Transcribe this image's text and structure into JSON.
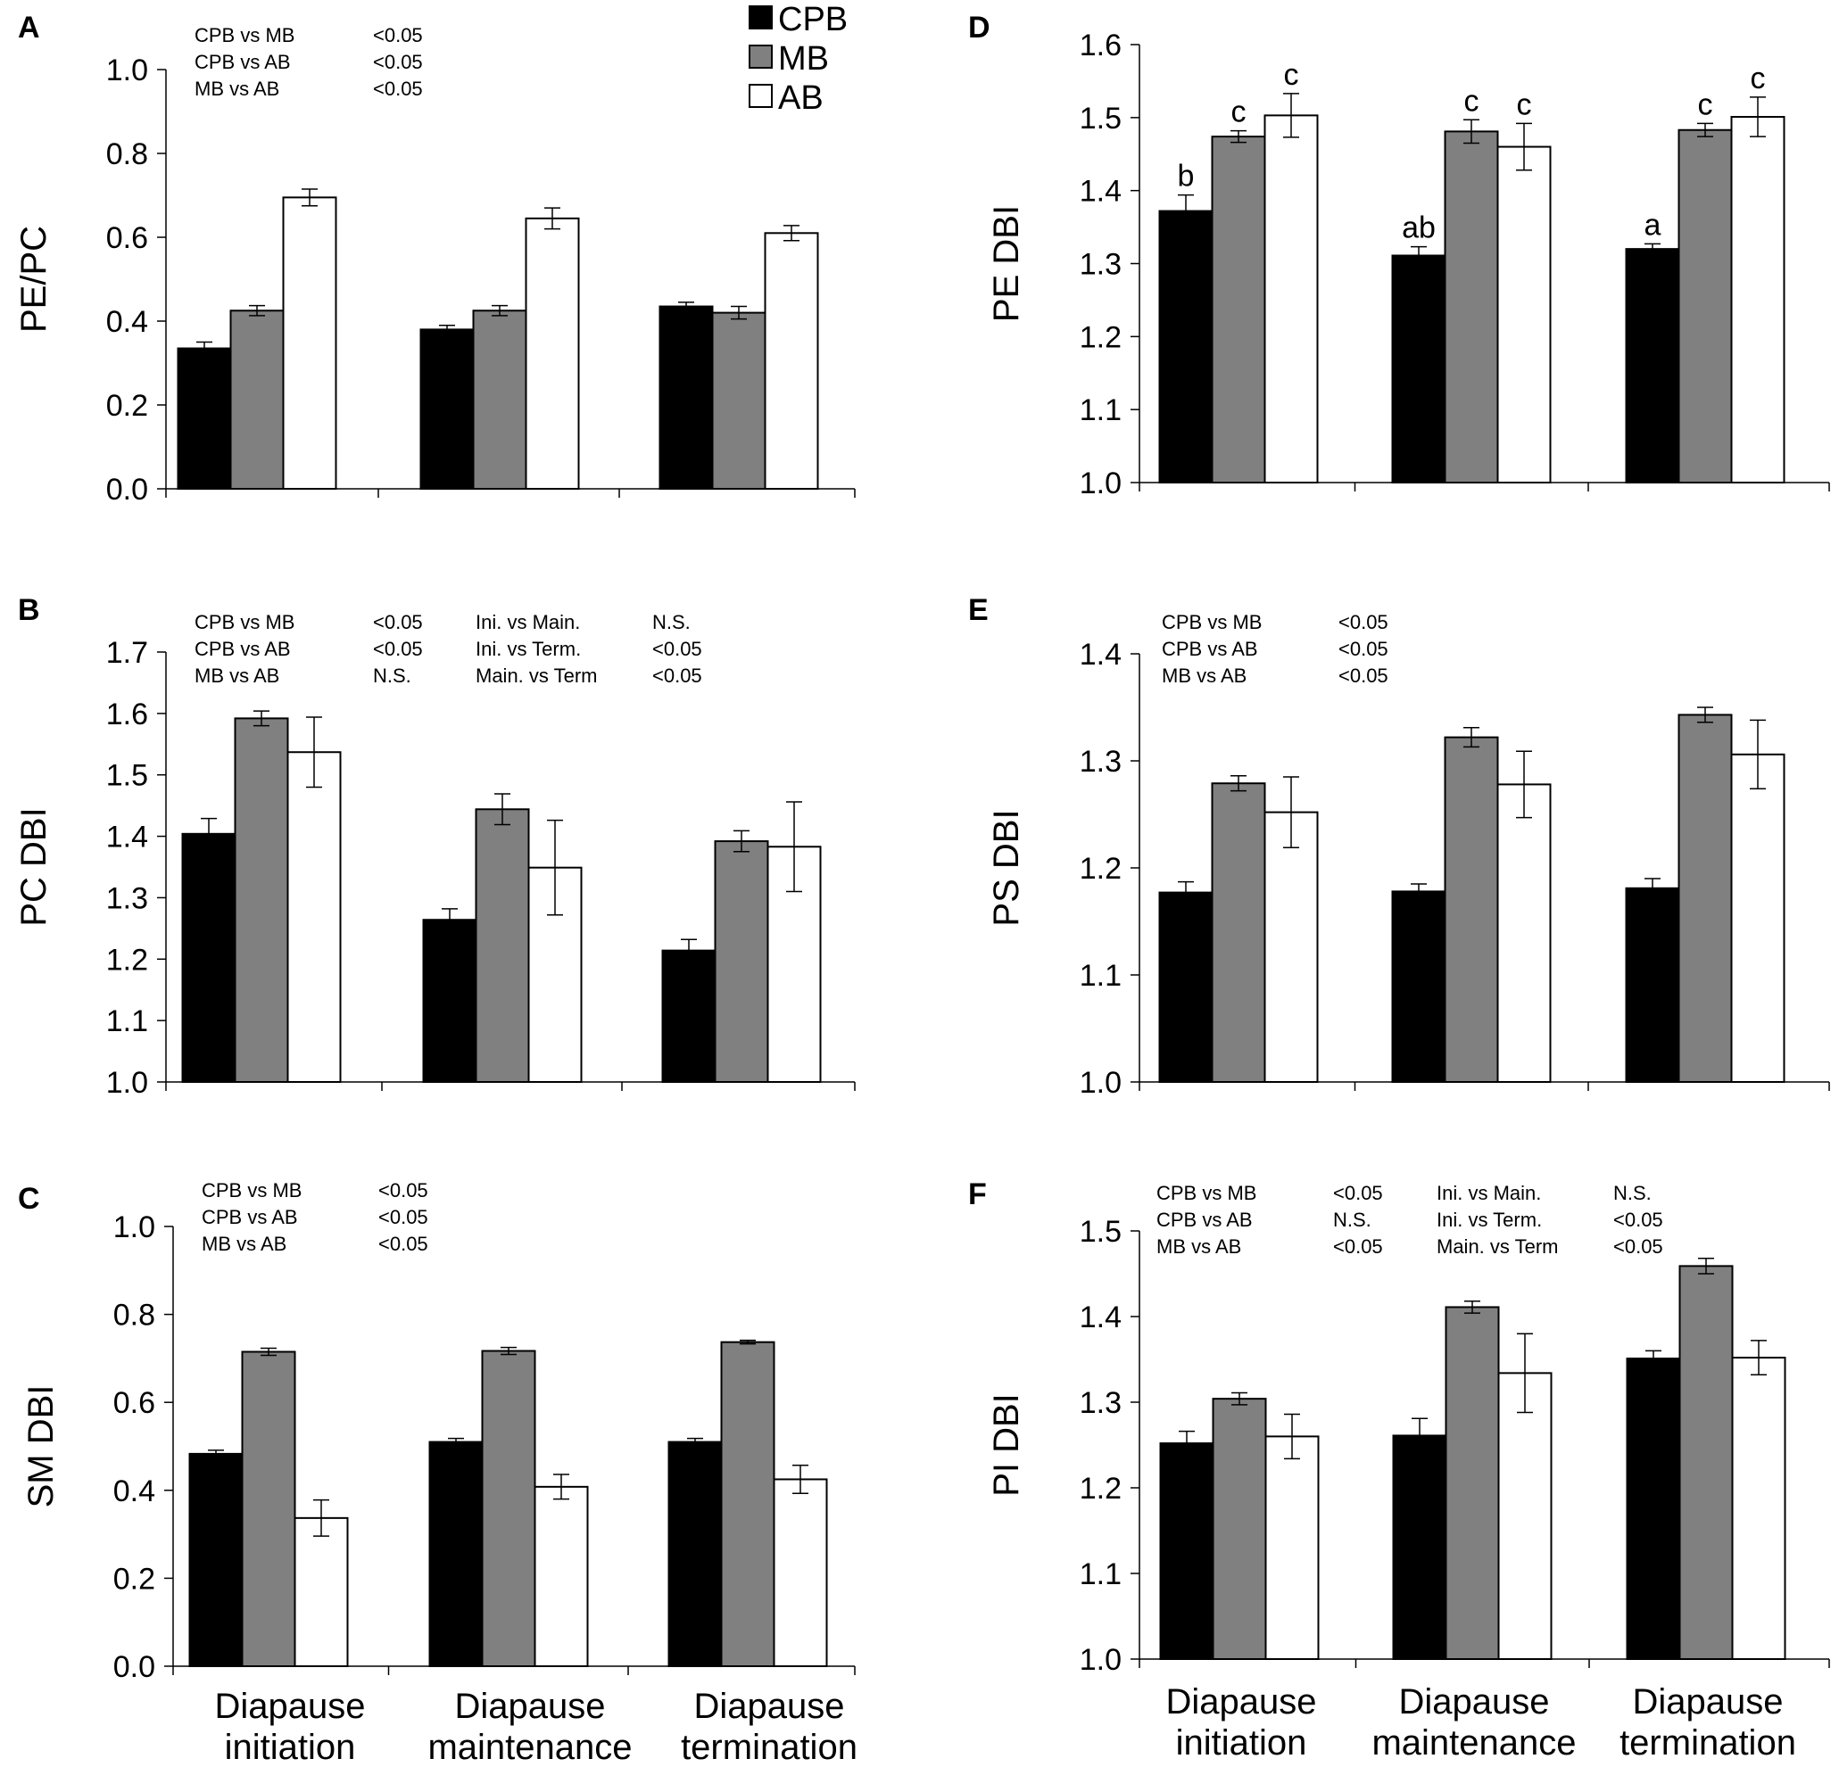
{
  "colors": {
    "CPB": "#000000",
    "MB": "#808080",
    "AB": "#ffffff"
  },
  "legend": [
    {
      "key": "CPB",
      "label": "CPB"
    },
    {
      "key": "MB",
      "label": "MB"
    },
    {
      "key": "AB",
      "label": "AB"
    }
  ],
  "x_categories": [
    [
      "Diapause",
      "initiation"
    ],
    [
      "Diapause",
      "maintenance"
    ],
    [
      "Diapause",
      "termination"
    ]
  ],
  "chart_data": [
    {
      "id": "A",
      "panel": "A",
      "type": "bar",
      "ylabel": "PE/PC",
      "ylim": [
        0.0,
        1.0
      ],
      "yticks": [
        "0.0",
        "0.2",
        "0.4",
        "0.6",
        "0.8",
        "1.0"
      ],
      "categories": [
        "Diapause initiation",
        "Diapause maintenance",
        "Diapause termination"
      ],
      "series": [
        {
          "name": "CPB",
          "values": [
            0.335,
            0.38,
            0.435
          ],
          "errors": [
            0.015,
            0.01,
            0.01
          ]
        },
        {
          "name": "MB",
          "values": [
            0.425,
            0.425,
            0.42
          ],
          "errors": [
            0.012,
            0.012,
            0.015
          ]
        },
        {
          "name": "AB",
          "values": [
            0.695,
            0.645,
            0.61
          ],
          "errors": [
            0.02,
            0.025,
            0.018
          ]
        }
      ],
      "stats": [
        [
          [
            "CPB vs MB",
            "<0.05"
          ],
          [
            "CPB vs AB",
            "<0.05"
          ],
          [
            "MB vs AB",
            "<0.05"
          ]
        ]
      ],
      "letters": []
    },
    {
      "id": "B",
      "panel": "B",
      "type": "bar",
      "ylabel": "PC DBI",
      "ylim": [
        1.0,
        1.7
      ],
      "yticks": [
        "1.0",
        "1.1",
        "1.2",
        "1.3",
        "1.4",
        "1.5",
        "1.6",
        "1.7"
      ],
      "categories": [
        "Diapause initiation",
        "Diapause maintenance",
        "Diapause termination"
      ],
      "series": [
        {
          "name": "CPB",
          "values": [
            1.404,
            1.264,
            1.214
          ],
          "errors": [
            0.025,
            0.018,
            0.018
          ]
        },
        {
          "name": "MB",
          "values": [
            1.592,
            1.444,
            1.392
          ],
          "errors": [
            0.012,
            0.025,
            0.017
          ]
        },
        {
          "name": "AB",
          "values": [
            1.537,
            1.349,
            1.383
          ],
          "errors": [
            0.057,
            0.077,
            0.073
          ]
        }
      ],
      "stats": [
        [
          [
            "CPB vs MB",
            "<0.05"
          ],
          [
            "CPB vs AB",
            "<0.05"
          ],
          [
            "MB vs AB",
            "N.S."
          ]
        ],
        [
          [
            "Ini. vs Main.",
            "N.S."
          ],
          [
            "Ini. vs Term.",
            "<0.05"
          ],
          [
            "Main. vs Term",
            "<0.05"
          ]
        ]
      ],
      "letters": []
    },
    {
      "id": "C",
      "panel": "C",
      "type": "bar",
      "ylabel": "SM DBI",
      "ylim": [
        0.0,
        1.0
      ],
      "yticks": [
        "0.0",
        "0.2",
        "0.4",
        "0.6",
        "0.8",
        "1.0"
      ],
      "categories": [
        "Diapause initiation",
        "Diapause maintenance",
        "Diapause termination"
      ],
      "series": [
        {
          "name": "CPB",
          "values": [
            0.483,
            0.51,
            0.51
          ],
          "errors": [
            0.008,
            0.008,
            0.008
          ]
        },
        {
          "name": "MB",
          "values": [
            0.715,
            0.717,
            0.737
          ],
          "errors": [
            0.008,
            0.008,
            0.004
          ]
        },
        {
          "name": "AB",
          "values": [
            0.337,
            0.408,
            0.425
          ],
          "errors": [
            0.041,
            0.028,
            0.032
          ]
        }
      ],
      "stats": [
        [
          [
            "CPB vs MB",
            "<0.05"
          ],
          [
            "CPB vs AB",
            "<0.05"
          ],
          [
            "MB vs AB",
            "<0.05"
          ]
        ]
      ],
      "letters": []
    },
    {
      "id": "D",
      "panel": "D",
      "type": "bar",
      "ylabel": "PE DBI",
      "ylim": [
        1.0,
        1.6
      ],
      "yticks": [
        "1.0",
        "1.1",
        "1.2",
        "1.3",
        "1.4",
        "1.5",
        "1.6"
      ],
      "categories": [
        "Diapause initiation",
        "Diapause maintenance",
        "Diapause termination"
      ],
      "series": [
        {
          "name": "CPB",
          "values": [
            1.372,
            1.311,
            1.32
          ],
          "errors": [
            0.022,
            0.012,
            0.007
          ]
        },
        {
          "name": "MB",
          "values": [
            1.474,
            1.481,
            1.483
          ],
          "errors": [
            0.008,
            0.016,
            0.009
          ]
        },
        {
          "name": "AB",
          "values": [
            1.503,
            1.46,
            1.501
          ],
          "errors": [
            0.03,
            0.032,
            0.027
          ]
        }
      ],
      "stats": [],
      "letters": [
        [
          "b",
          "c",
          "c"
        ],
        [
          "ab",
          "c",
          "c"
        ],
        [
          "a",
          "c",
          "c"
        ]
      ]
    },
    {
      "id": "E",
      "panel": "E",
      "type": "bar",
      "ylabel": "PS DBI",
      "ylim": [
        1.0,
        1.4
      ],
      "yticks": [
        "1.0",
        "1.1",
        "1.2",
        "1.3",
        "1.4"
      ],
      "categories": [
        "Diapause initiation",
        "Diapause maintenance",
        "Diapause termination"
      ],
      "series": [
        {
          "name": "CPB",
          "values": [
            1.177,
            1.178,
            1.181
          ],
          "errors": [
            0.01,
            0.007,
            0.009
          ]
        },
        {
          "name": "MB",
          "values": [
            1.279,
            1.322,
            1.343
          ],
          "errors": [
            0.007,
            0.009,
            0.007
          ]
        },
        {
          "name": "AB",
          "values": [
            1.252,
            1.278,
            1.306
          ],
          "errors": [
            0.033,
            0.031,
            0.032
          ]
        }
      ],
      "stats": [
        [
          [
            "CPB vs MB",
            "<0.05"
          ],
          [
            "CPB vs AB",
            "<0.05"
          ],
          [
            "MB vs AB",
            "<0.05"
          ]
        ]
      ],
      "letters": []
    },
    {
      "id": "F",
      "panel": "F",
      "type": "bar",
      "ylabel": "PI DBI",
      "ylim": [
        1.0,
        1.5
      ],
      "yticks": [
        "1.0",
        "1.1",
        "1.2",
        "1.3",
        "1.4",
        "1.5"
      ],
      "categories": [
        "Diapause initiation",
        "Diapause maintenance",
        "Diapause termination"
      ],
      "series": [
        {
          "name": "CPB",
          "values": [
            1.252,
            1.261,
            1.351
          ],
          "errors": [
            0.014,
            0.02,
            0.009
          ]
        },
        {
          "name": "MB",
          "values": [
            1.304,
            1.411,
            1.459
          ],
          "errors": [
            0.007,
            0.007,
            0.009
          ]
        },
        {
          "name": "AB",
          "values": [
            1.26,
            1.334,
            1.352
          ],
          "errors": [
            0.026,
            0.046,
            0.02
          ]
        }
      ],
      "stats": [
        [
          [
            "CPB vs MB",
            "<0.05"
          ],
          [
            "CPB vs AB",
            "N.S."
          ],
          [
            "MB vs AB",
            "<0.05"
          ]
        ],
        [
          [
            "Ini. vs Main.",
            "N.S."
          ],
          [
            "Ini. vs Term.",
            "<0.05"
          ],
          [
            "Main. vs Term",
            "<0.05"
          ]
        ]
      ],
      "letters": []
    }
  ]
}
